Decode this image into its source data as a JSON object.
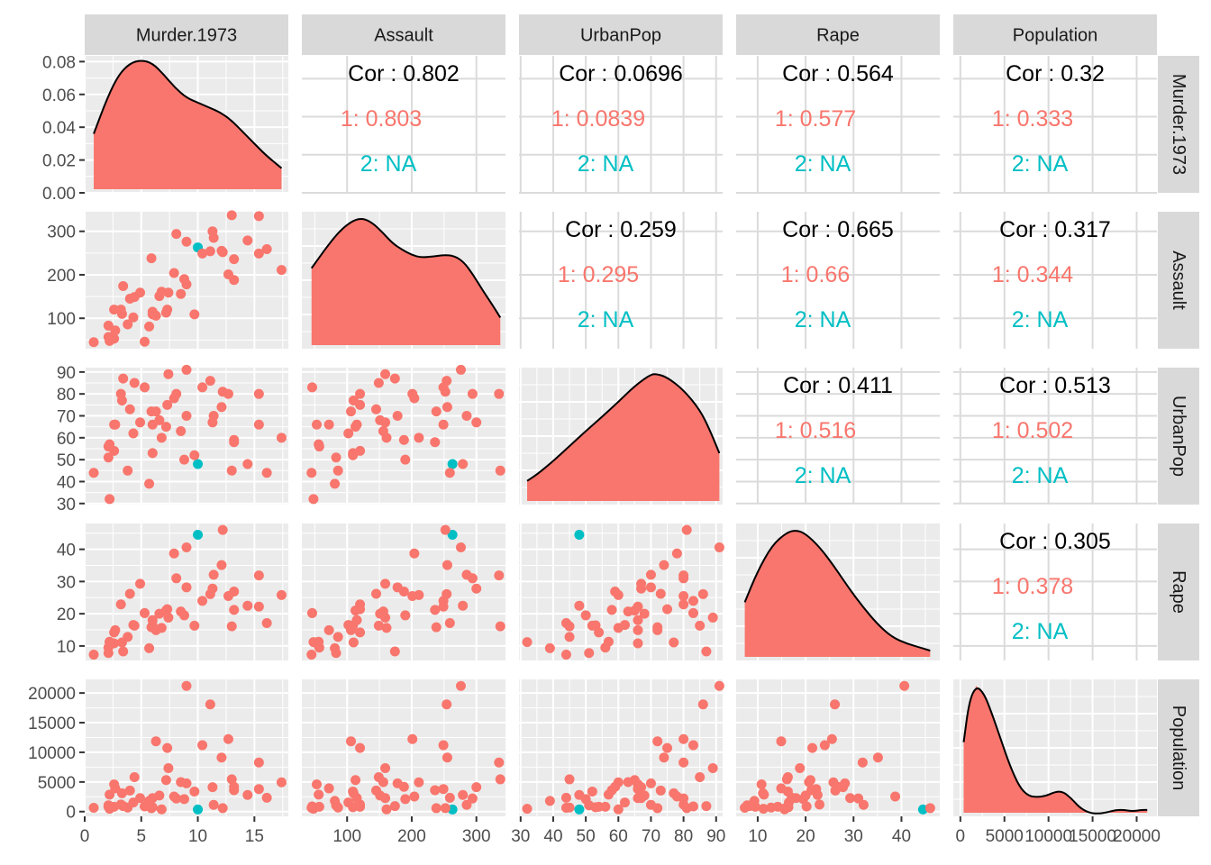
{
  "chart_data": {
    "type": "scatter",
    "variables": [
      "Murder.1973",
      "Assault",
      "UrbanPop",
      "Rape",
      "Population"
    ],
    "axes": {
      "Murder.1973": {
        "lim": [
          0,
          18
        ],
        "ticks": [
          0,
          5,
          10,
          15
        ],
        "tick_labels": [
          "0",
          "5",
          "10",
          "15"
        ],
        "density_ticks": [
          "0.00",
          "0.02",
          "0.04",
          "0.06",
          "0.08"
        ],
        "density_lim": [
          0,
          0.0835
        ]
      },
      "Assault": {
        "lim": [
          30,
          345
        ],
        "ticks": [
          100,
          200,
          300
        ],
        "tick_labels": [
          "100",
          "200",
          "300"
        ]
      },
      "UrbanPop": {
        "lim": [
          29.5,
          92
        ],
        "ticks": [
          30,
          40,
          50,
          60,
          70,
          80,
          90
        ],
        "tick_labels": [
          "30",
          "40",
          "50",
          "60",
          "70",
          "80",
          "90"
        ]
      },
      "Rape": {
        "lim": [
          5.5,
          48
        ],
        "ticks": [
          10,
          20,
          30,
          40
        ],
        "tick_labels": [
          "10",
          "20",
          "30",
          "40"
        ]
      },
      "Population": {
        "lim": [
          -800,
          22300
        ],
        "ticks": [
          0,
          5000,
          10000,
          15000,
          20000
        ],
        "tick_labels": [
          "0",
          "5000",
          "10000",
          "15000",
          "20000"
        ]
      }
    },
    "series": [
      {
        "name": "1",
        "color": "#F8766D"
      },
      {
        "name": "2",
        "color": "#00BFC4"
      }
    ],
    "points": [
      [
        13.2,
        236,
        58,
        21.2,
        3615,
        1
      ],
      [
        10.0,
        263,
        48,
        44.5,
        365,
        2
      ],
      [
        8.1,
        294,
        80,
        31.0,
        2212,
        1
      ],
      [
        8.8,
        190,
        50,
        19.5,
        2110,
        1
      ],
      [
        9.0,
        276,
        91,
        40.6,
        21198,
        1
      ],
      [
        7.9,
        204,
        78,
        38.7,
        2541,
        1
      ],
      [
        3.3,
        110,
        77,
        11.1,
        3100,
        1
      ],
      [
        5.9,
        238,
        72,
        15.8,
        579,
        1
      ],
      [
        15.4,
        335,
        80,
        31.9,
        8277,
        1
      ],
      [
        17.4,
        211,
        60,
        25.8,
        4931,
        1
      ],
      [
        5.3,
        46,
        83,
        20.2,
        868,
        1
      ],
      [
        2.6,
        120,
        54,
        14.2,
        813,
        1
      ],
      [
        10.4,
        249,
        83,
        24.0,
        11197,
        1
      ],
      [
        7.2,
        113,
        65,
        21.0,
        5313,
        1
      ],
      [
        2.2,
        56,
        57,
        11.3,
        2861,
        1
      ],
      [
        6.0,
        115,
        66,
        18.0,
        2280,
        1
      ],
      [
        9.7,
        109,
        52,
        16.3,
        3387,
        1
      ],
      [
        15.4,
        249,
        66,
        22.2,
        3806,
        1
      ],
      [
        2.1,
        83,
        51,
        7.8,
        1058,
        1
      ],
      [
        11.3,
        300,
        67,
        27.8,
        4122,
        1
      ],
      [
        4.4,
        149,
        85,
        16.3,
        5814,
        1
      ],
      [
        12.1,
        255,
        74,
        35.1,
        9111,
        1
      ],
      [
        2.7,
        72,
        66,
        14.9,
        3921,
        1
      ],
      [
        16.1,
        259,
        44,
        17.1,
        2341,
        1
      ],
      [
        9.0,
        178,
        70,
        28.2,
        4767,
        1
      ],
      [
        6.0,
        109,
        53,
        16.4,
        746,
        1
      ],
      [
        4.3,
        102,
        62,
        16.5,
        1544,
        1
      ],
      [
        12.2,
        252,
        81,
        46.0,
        590,
        1
      ],
      [
        2.1,
        57,
        56,
        9.5,
        812,
        1
      ],
      [
        7.4,
        159,
        89,
        18.8,
        7333,
        1
      ],
      [
        11.4,
        285,
        70,
        32.1,
        1144,
        1
      ],
      [
        11.1,
        254,
        86,
        26.1,
        18076,
        1
      ],
      [
        13.0,
        337,
        45,
        16.1,
        5441,
        1
      ],
      [
        0.8,
        45,
        44,
        7.3,
        637,
        1
      ],
      [
        7.3,
        120,
        75,
        21.4,
        10735,
        1
      ],
      [
        6.6,
        151,
        68,
        20.0,
        2715,
        1
      ],
      [
        4.9,
        159,
        67,
        29.3,
        2284,
        1
      ],
      [
        6.3,
        106,
        72,
        14.9,
        11860,
        1
      ],
      [
        3.4,
        174,
        87,
        8.3,
        931,
        1
      ],
      [
        14.4,
        279,
        48,
        22.5,
        2816,
        1
      ],
      [
        3.8,
        86,
        45,
        12.8,
        681,
        1
      ],
      [
        13.2,
        188,
        59,
        26.9,
        4173,
        1
      ],
      [
        12.7,
        201,
        80,
        25.5,
        12237,
        1
      ],
      [
        3.2,
        120,
        80,
        22.9,
        1203,
        1
      ],
      [
        2.2,
        48,
        32,
        11.2,
        472,
        1
      ],
      [
        8.5,
        156,
        63,
        20.7,
        4981,
        1
      ],
      [
        4.0,
        145,
        73,
        26.2,
        3559,
        1
      ],
      [
        5.7,
        81,
        39,
        9.3,
        1799,
        1
      ],
      [
        2.6,
        53,
        66,
        10.8,
        4589,
        1
      ],
      [
        6.8,
        161,
        60,
        15.6,
        376,
        1
      ]
    ],
    "densities": {
      "Murder.1973": [
        [
          0.8,
          0.036
        ],
        [
          2,
          0.058
        ],
        [
          3,
          0.072
        ],
        [
          4,
          0.079
        ],
        [
          5,
          0.081
        ],
        [
          6,
          0.079
        ],
        [
          7,
          0.072
        ],
        [
          8,
          0.064
        ],
        [
          9,
          0.058
        ],
        [
          10,
          0.055
        ],
        [
          11,
          0.052
        ],
        [
          12,
          0.049
        ],
        [
          13,
          0.044
        ],
        [
          14,
          0.037
        ],
        [
          15,
          0.03
        ],
        [
          16,
          0.023
        ],
        [
          17.4,
          0.015
        ]
      ],
      "Assault": [
        [
          45,
          0.00305
        ],
        [
          70,
          0.0039
        ],
        [
          90,
          0.0045
        ],
        [
          110,
          0.00487
        ],
        [
          125,
          0.00494
        ],
        [
          140,
          0.00475
        ],
        [
          155,
          0.0044
        ],
        [
          170,
          0.004
        ],
        [
          185,
          0.00375
        ],
        [
          200,
          0.00355
        ],
        [
          215,
          0.00345
        ],
        [
          235,
          0.0035
        ],
        [
          250,
          0.00355
        ],
        [
          265,
          0.00352
        ],
        [
          280,
          0.0033
        ],
        [
          295,
          0.0028
        ],
        [
          310,
          0.0022
        ],
        [
          325,
          0.00165
        ],
        [
          337,
          0.00118
        ]
      ],
      "UrbanPop": [
        [
          32,
          0.003
        ],
        [
          35,
          0.0038
        ],
        [
          40,
          0.0055
        ],
        [
          45,
          0.0074
        ],
        [
          50,
          0.0093
        ],
        [
          55,
          0.0111
        ],
        [
          60,
          0.013
        ],
        [
          65,
          0.015
        ],
        [
          70,
          0.0165
        ],
        [
          72,
          0.0165
        ],
        [
          75,
          0.0161
        ],
        [
          80,
          0.0145
        ],
        [
          85,
          0.012
        ],
        [
          88,
          0.0095
        ],
        [
          91,
          0.0065
        ]
      ],
      "Rape": [
        [
          7.3,
          0.0273
        ],
        [
          10,
          0.042
        ],
        [
          13,
          0.054
        ],
        [
          16,
          0.06
        ],
        [
          18,
          0.0612
        ],
        [
          20,
          0.0595
        ],
        [
          23,
          0.053
        ],
        [
          26,
          0.044
        ],
        [
          29,
          0.034
        ],
        [
          32,
          0.025
        ],
        [
          35,
          0.017
        ],
        [
          38,
          0.011
        ],
        [
          41,
          0.008
        ],
        [
          44,
          0.006
        ],
        [
          46,
          0.0046
        ]
      ],
      "Population": [
        [
          376,
          5.8e-05
        ],
        [
          1000,
          9e-05
        ],
        [
          1800,
          0.000102
        ],
        [
          2700,
          9.6e-05
        ],
        [
          3600,
          8e-05
        ],
        [
          4600,
          6e-05
        ],
        [
          5600,
          4e-05
        ],
        [
          6700,
          2.3e-05
        ],
        [
          7700,
          1.6e-05
        ],
        [
          8700,
          1.5e-05
        ],
        [
          9700,
          1.6e-05
        ],
        [
          10700,
          1.9e-05
        ],
        [
          11600,
          1.95e-05
        ],
        [
          12600,
          1.4e-05
        ],
        [
          13500,
          7e-06
        ],
        [
          14500,
          3e-06
        ],
        [
          15500,
          2e-06
        ],
        [
          16600,
          3e-06
        ],
        [
          17600,
          5e-06
        ],
        [
          18600,
          5e-06
        ],
        [
          19500,
          4e-06
        ],
        [
          20600,
          5e-06
        ],
        [
          21198,
          5e-06
        ]
      ]
    },
    "correlations": [
      {
        "row": "Murder.1973",
        "col": "Assault",
        "overall": "Cor : 0.802",
        "group1": "1: 0.803",
        "group2": "2: NA"
      },
      {
        "row": "Murder.1973",
        "col": "UrbanPop",
        "overall": "Cor : 0.0696",
        "group1": "1: 0.0839",
        "group2": "2: NA"
      },
      {
        "row": "Murder.1973",
        "col": "Rape",
        "overall": "Cor : 0.564",
        "group1": "1: 0.577",
        "group2": "2: NA"
      },
      {
        "row": "Murder.1973",
        "col": "Population",
        "overall": "Cor : 0.32",
        "group1": "1: 0.333",
        "group2": "2: NA"
      },
      {
        "row": "Assault",
        "col": "UrbanPop",
        "overall": "Cor : 0.259",
        "group1": "1: 0.295",
        "group2": "2: NA"
      },
      {
        "row": "Assault",
        "col": "Rape",
        "overall": "Cor : 0.665",
        "group1": "1: 0.66",
        "group2": "2: NA"
      },
      {
        "row": "Assault",
        "col": "Population",
        "overall": "Cor : 0.317",
        "group1": "1: 0.344",
        "group2": "2: NA"
      },
      {
        "row": "UrbanPop",
        "col": "Rape",
        "overall": "Cor : 0.411",
        "group1": "1: 0.516",
        "group2": "2: NA"
      },
      {
        "row": "UrbanPop",
        "col": "Population",
        "overall": "Cor : 0.513",
        "group1": "1: 0.502",
        "group2": "2: NA"
      },
      {
        "row": "Rape",
        "col": "Population",
        "overall": "Cor : 0.305",
        "group1": "1: 0.378",
        "group2": "2: NA"
      }
    ],
    "grid": true,
    "legend": "none",
    "colors": {
      "panel_bg": "#EBEBEB",
      "grid": "#FFFFFF",
      "strip": "#D9D9D9",
      "cor_text": "#000000",
      "density_fill": "#F8766D"
    }
  }
}
